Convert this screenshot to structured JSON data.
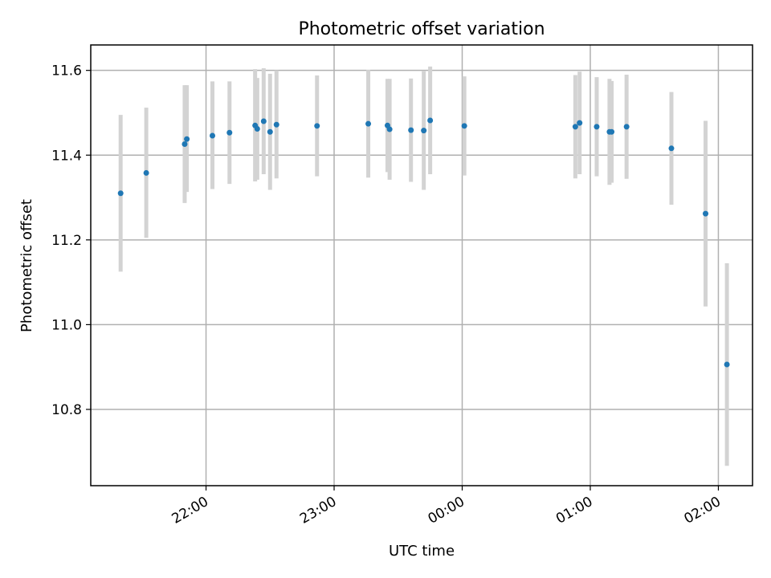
{
  "chart_data": {
    "type": "scatter",
    "title": "Photometric offset variation",
    "xlabel": "UTC time",
    "ylabel": "Photometric offset",
    "grid": true,
    "x_ticks": [
      "22:00",
      "23:00",
      "00:00",
      "01:00",
      "02:00"
    ],
    "x_tick_times": [
      "2000-01-01T22:00",
      "2000-01-01T23:00",
      "2000-01-02T00:00",
      "2000-01-02T01:00",
      "2000-01-02T02:00"
    ],
    "y_ticks": [
      10.8,
      11.0,
      11.2,
      11.4,
      11.6
    ],
    "xlim": [
      "2000-01-01T21:06",
      "2000-01-02T02:16"
    ],
    "ylim": [
      10.62,
      11.66
    ],
    "marker_color": "#1f77b4",
    "errorbar_color": "#d3d3d3",
    "series": [
      {
        "points": [
          {
            "x": "2000-01-01T21:20",
            "y": 11.31,
            "lo": 11.125,
            "hi": 11.495
          },
          {
            "x": "2000-01-01T21:32",
            "y": 11.358,
            "lo": 11.205,
            "hi": 11.512
          },
          {
            "x": "2000-01-01T21:50",
            "y": 11.426,
            "lo": 11.287,
            "hi": 11.565
          },
          {
            "x": "2000-01-01T21:51",
            "y": 11.438,
            "lo": 11.313,
            "hi": 11.565
          },
          {
            "x": "2000-01-01T22:03",
            "y": 11.446,
            "lo": 11.32,
            "hi": 11.574
          },
          {
            "x": "2000-01-01T22:11",
            "y": 11.453,
            "lo": 11.332,
            "hi": 11.574
          },
          {
            "x": "2000-01-01T22:23",
            "y": 11.47,
            "lo": 11.338,
            "hi": 11.603
          },
          {
            "x": "2000-01-01T22:24",
            "y": 11.462,
            "lo": 11.342,
            "hi": 11.582
          },
          {
            "x": "2000-01-01T22:27",
            "y": 11.48,
            "lo": 11.355,
            "hi": 11.605
          },
          {
            "x": "2000-01-01T22:30",
            "y": 11.455,
            "lo": 11.318,
            "hi": 11.592
          },
          {
            "x": "2000-01-01T22:33",
            "y": 11.472,
            "lo": 11.345,
            "hi": 11.6
          },
          {
            "x": "2000-01-01T22:52",
            "y": 11.469,
            "lo": 11.35,
            "hi": 11.588
          },
          {
            "x": "2000-01-01T23:16",
            "y": 11.474,
            "lo": 11.347,
            "hi": 11.601
          },
          {
            "x": "2000-01-01T23:25",
            "y": 11.47,
            "lo": 11.36,
            "hi": 11.58
          },
          {
            "x": "2000-01-01T23:26",
            "y": 11.461,
            "lo": 11.342,
            "hi": 11.58
          },
          {
            "x": "2000-01-01T23:36",
            "y": 11.459,
            "lo": 11.337,
            "hi": 11.581
          },
          {
            "x": "2000-01-01T23:42",
            "y": 11.458,
            "lo": 11.318,
            "hi": 11.598
          },
          {
            "x": "2000-01-01T23:45",
            "y": 11.482,
            "lo": 11.355,
            "hi": 11.609
          },
          {
            "x": "2000-01-02T00:01",
            "y": 11.469,
            "lo": 11.352,
            "hi": 11.586
          },
          {
            "x": "2000-01-02T00:53",
            "y": 11.467,
            "lo": 11.345,
            "hi": 11.589
          },
          {
            "x": "2000-01-02T00:55",
            "y": 11.476,
            "lo": 11.355,
            "hi": 11.597
          },
          {
            "x": "2000-01-02T01:03",
            "y": 11.467,
            "lo": 11.35,
            "hi": 11.584
          },
          {
            "x": "2000-01-02T01:09",
            "y": 11.455,
            "lo": 11.33,
            "hi": 11.58
          },
          {
            "x": "2000-01-02T01:10",
            "y": 11.455,
            "lo": 11.335,
            "hi": 11.575
          },
          {
            "x": "2000-01-02T01:17",
            "y": 11.467,
            "lo": 11.344,
            "hi": 11.59
          },
          {
            "x": "2000-01-02T01:38",
            "y": 11.416,
            "lo": 11.283,
            "hi": 11.549
          },
          {
            "x": "2000-01-02T01:54",
            "y": 11.262,
            "lo": 11.043,
            "hi": 11.481
          },
          {
            "x": "2000-01-02T02:04",
            "y": 10.906,
            "lo": 10.667,
            "hi": 11.145
          }
        ]
      }
    ]
  }
}
